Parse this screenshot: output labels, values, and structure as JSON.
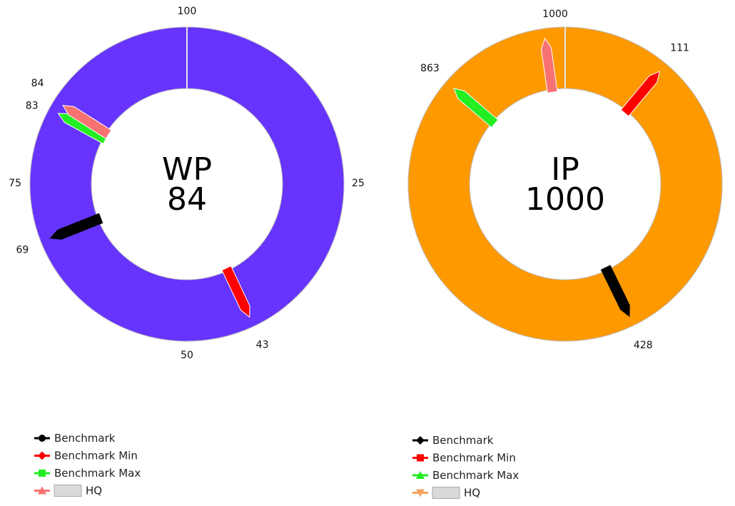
{
  "chart_data": [
    {
      "type": "gauge",
      "series_label": "WP",
      "value": 84,
      "range": [
        0,
        100
      ],
      "color": "#6633ff",
      "tick_labels": [
        "100",
        "25",
        "50",
        "75"
      ],
      "markers": [
        {
          "name": "Benchmark",
          "value": 69,
          "label": "69",
          "color": "#000000",
          "legend_symbol": "circle"
        },
        {
          "name": "Benchmark Min",
          "value": 43,
          "label": "43",
          "color": "#ff0000",
          "legend_symbol": "diamond"
        },
        {
          "name": "Benchmark Max",
          "value": 83,
          "label": "83",
          "color": "#22ee22",
          "legend_symbol": "square"
        },
        {
          "name": "HQ",
          "value": 84,
          "label": "84",
          "color": "#f87272",
          "legend_symbol": "triangle"
        }
      ]
    },
    {
      "type": "gauge",
      "series_label": "IP",
      "value": 1000,
      "range": [
        0,
        1000
      ],
      "color": "#ff9900",
      "tick_labels": [
        "1000"
      ],
      "markers": [
        {
          "name": "Benchmark",
          "value": 428,
          "label": "428",
          "color": "#000000",
          "legend_symbol": "diamond"
        },
        {
          "name": "Benchmark Min",
          "value": 111,
          "label": "111",
          "color": "#ff0000",
          "legend_symbol": "square"
        },
        {
          "name": "Benchmark Max",
          "value": 863,
          "label": "863",
          "color": "#22ee22",
          "legend_symbol": "triangle"
        },
        {
          "name": "HQ",
          "value": 978,
          "label": "",
          "color": "#f87272",
          "legend_symbol": "triangle-down",
          "legend_symbol_color": "#f4a460"
        }
      ]
    }
  ]
}
